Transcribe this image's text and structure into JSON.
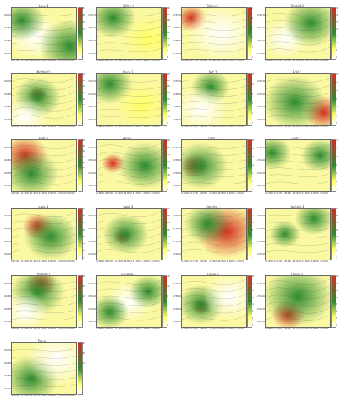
{
  "figure": {
    "panels": [
      {
        "title": "Lucy 1",
        "yticks": [
          "226700",
          "226600",
          "226500",
          "226400"
        ],
        "xticks": [
          "417000",
          "417500",
          "418000",
          "418500",
          "419000",
          "419500",
          "420000"
        ],
        "cbar": [
          "21",
          "18",
          "15",
          "12",
          "9",
          "6",
          "3",
          "0"
        ],
        "palette": "w"
      },
      {
        "title": "Ochre 2",
        "yticks": [
          "226700",
          "226600",
          "226500",
          "226400"
        ],
        "xticks": [
          "416800",
          "417000",
          "417400",
          "417600",
          "417800",
          "418000",
          "418200"
        ],
        "cbar": [
          "36",
          "32",
          "28",
          "24",
          "20",
          "16",
          "12",
          "8",
          "4"
        ],
        "palette": "g"
      },
      {
        "title": "Tailored 1",
        "yticks": [
          "226700",
          "226600",
          "226500",
          "226400"
        ],
        "xticks": [
          "417000",
          "417200",
          "417400",
          "417600",
          "417800",
          "418000",
          "418200"
        ],
        "cbar": [
          "5",
          "4",
          "3",
          "2",
          "1",
          "0"
        ],
        "palette": "w2"
      },
      {
        "title": "Twirled 2",
        "yticks": [
          "226700",
          "226600",
          "226500",
          "226400"
        ],
        "xticks": [
          "416800",
          "417000",
          "417200",
          "417400",
          "417600",
          "417800",
          "418000"
        ],
        "cbar": [
          "21",
          "18",
          "15",
          "12",
          "9",
          "6",
          "3",
          "0"
        ],
        "palette": "g2"
      },
      {
        "title": "Mottled 1",
        "yticks": [
          "226700",
          "226600",
          "226500",
          "226400"
        ],
        "xticks": [
          "417000",
          "417200",
          "417400",
          "417600",
          "417800",
          "418000",
          "418200"
        ],
        "cbar": [
          "32",
          "28",
          "24",
          "20",
          "16",
          "12",
          "8",
          "4",
          "0"
        ],
        "palette": "y"
      },
      {
        "title": "Ness 2",
        "yticks": [
          "226700",
          "226600",
          "226500",
          "226400"
        ],
        "xticks": [
          "416800",
          "417000",
          "417200",
          "417400",
          "417600",
          "417800",
          "418000"
        ],
        "cbar": [
          "45",
          "40",
          "35",
          "30",
          "25",
          "20",
          "15",
          "10",
          "5"
        ],
        "palette": "y2"
      },
      {
        "title": "Ash 1",
        "yticks": [
          "226700",
          "226600",
          "226500",
          "226400"
        ],
        "xticks": [
          "417000",
          "417200",
          "417400",
          "417600",
          "417800",
          "418000",
          "418200"
        ],
        "cbar": [
          "15",
          "12",
          "9",
          "6",
          "3",
          "0"
        ],
        "palette": "y3"
      },
      {
        "title": "Bold 2",
        "yticks": [
          "226700",
          "226600",
          "226500",
          "226400"
        ],
        "xticks": [
          "417000",
          "417200",
          "417400",
          "417600",
          "417800",
          "418000",
          "418200"
        ],
        "cbar": [
          "18",
          "15",
          "12",
          "9",
          "6",
          "3",
          "0"
        ],
        "palette": "g3"
      },
      {
        "title": "Hazl 1",
        "yticks": [
          "226700",
          "226600",
          "226500",
          "226400"
        ],
        "xticks": [
          "417000",
          "417200",
          "417400",
          "417600",
          "417800",
          "418000",
          "418200"
        ],
        "cbar": [
          "20",
          "18",
          "16",
          "14",
          "12",
          "10",
          "8",
          "6",
          "4",
          "2"
        ],
        "palette": "r"
      },
      {
        "title": "Hazel 2",
        "yticks": [
          "226700",
          "226600",
          "226500",
          "226400"
        ],
        "xticks": [
          "416800",
          "417000",
          "417200",
          "417400",
          "417600",
          "417800",
          "418000"
        ],
        "cbar": [
          "36",
          "32",
          "28",
          "24",
          "20",
          "16",
          "12",
          "8"
        ],
        "palette": "g4"
      },
      {
        "title": "Lady 1",
        "yticks": [
          "226700",
          "226600",
          "226500",
          "226400"
        ],
        "xticks": [
          "417000",
          "417200",
          "417400",
          "417600",
          "417800",
          "418000",
          "418200"
        ],
        "cbar": [
          "21",
          "18",
          "15",
          "12",
          "9",
          "6",
          "3"
        ],
        "palette": "y4"
      },
      {
        "title": "Lady 2",
        "yticks": [
          "226700",
          "226600",
          "226500",
          "226400"
        ],
        "xticks": [
          "417000",
          "417200",
          "417400",
          "417600",
          "417800",
          "418000",
          "418200"
        ],
        "cbar": [
          "14",
          "12",
          "10",
          "8",
          "6",
          "4",
          "2"
        ],
        "palette": "g5"
      },
      {
        "title": "Lanc 1",
        "yticks": [
          "226700",
          "226600",
          "226500",
          "226400"
        ],
        "xticks": [
          "417000",
          "417200",
          "417400",
          "417600",
          "417800",
          "418000",
          "418200"
        ],
        "cbar": [
          "54",
          "48",
          "42",
          "36",
          "30",
          "24",
          "18",
          "12"
        ],
        "palette": "g6"
      },
      {
        "title": "Lanc 2",
        "yticks": [
          "226700",
          "226600",
          "226500",
          "226400"
        ],
        "xticks": [
          "416800",
          "417000",
          "417200",
          "417400",
          "417600",
          "417800",
          "418000"
        ],
        "cbar": [
          "40",
          "35",
          "30",
          "25",
          "20",
          "15",
          "10",
          "5"
        ],
        "palette": "y5"
      },
      {
        "title": "Speckle 1",
        "yticks": [
          "226700",
          "226600",
          "226500",
          "226400"
        ],
        "xticks": [
          "417000",
          "417200",
          "417400",
          "417600",
          "417800",
          "418000",
          "418200"
        ],
        "cbar": [
          "14",
          "12",
          "10",
          "8",
          "6",
          "4",
          "2",
          "0"
        ],
        "palette": "r2"
      },
      {
        "title": "Speckle 2",
        "yticks": [
          "226700",
          "226600",
          "226500",
          "226400"
        ],
        "xticks": [
          "417000",
          "417200",
          "417400",
          "417600",
          "417800",
          "418000",
          "418200"
        ],
        "cbar": [
          "32",
          "28",
          "24",
          "20",
          "16",
          "12",
          "8",
          "4"
        ],
        "palette": "g7"
      },
      {
        "title": "Stellate 1",
        "yticks": [
          "226700",
          "226600",
          "226500",
          "226400"
        ],
        "xticks": [
          "417000",
          "417200",
          "417400",
          "417600",
          "417800",
          "418000",
          "418200"
        ],
        "cbar": [
          "18",
          "15",
          "12",
          "9",
          "6",
          "3"
        ],
        "palette": "y6"
      },
      {
        "title": "Sublime 2",
        "yticks": [
          "226700",
          "226600",
          "226500",
          "226400"
        ],
        "xticks": [
          "416800",
          "417000",
          "417200",
          "417400",
          "417600",
          "417800",
          "418000"
        ],
        "cbar": [
          "15",
          "12",
          "9",
          "6",
          "3",
          "0"
        ],
        "palette": "w3"
      },
      {
        "title": "Dense 1",
        "yticks": [
          "226700",
          "226600",
          "226500",
          "226400"
        ],
        "xticks": [
          "417000",
          "417200",
          "417400",
          "417600",
          "417800",
          "418000",
          "418200"
        ],
        "cbar": [
          "28",
          "24",
          "20",
          "16",
          "12",
          "8",
          "4",
          "0"
        ],
        "palette": "w4"
      },
      {
        "title": "Dense 2",
        "yticks": [
          "226700",
          "226600",
          "226500",
          "226400"
        ],
        "xticks": [
          "416800",
          "417000",
          "417200",
          "417400",
          "417600",
          "417800",
          "418000"
        ],
        "cbar": [
          "16",
          "14",
          "12",
          "10",
          "8",
          "6",
          "4",
          "2"
        ],
        "palette": "r3"
      },
      {
        "title": "Tassel 1",
        "yticks": [
          "226700",
          "226600",
          "226500",
          "226400"
        ],
        "xticks": [
          "417000",
          "417200",
          "417400",
          "417600",
          "417800",
          "418000",
          "418200"
        ],
        "cbar": [
          "20",
          "16",
          "12",
          "8",
          "4",
          "0"
        ],
        "palette": "w5"
      }
    ]
  },
  "chart_data": [
    {
      "type": "heatmap",
      "title": "Lucy 1"
    },
    {
      "type": "heatmap",
      "title": "Ochre 2"
    },
    {
      "type": "heatmap",
      "title": "Tailored 1"
    },
    {
      "type": "heatmap",
      "title": "Twirled 2"
    },
    {
      "type": "heatmap",
      "title": "Mottled 1"
    },
    {
      "type": "heatmap",
      "title": "Ness 2"
    },
    {
      "type": "heatmap",
      "title": "Ash 1"
    },
    {
      "type": "heatmap",
      "title": "Bold 2"
    },
    {
      "type": "heatmap",
      "title": "Hazl 1"
    },
    {
      "type": "heatmap",
      "title": "Hazel 2"
    },
    {
      "type": "heatmap",
      "title": "Lady 1"
    },
    {
      "type": "heatmap",
      "title": "Lady 2"
    },
    {
      "type": "heatmap",
      "title": "Lanc 1"
    },
    {
      "type": "heatmap",
      "title": "Lanc 2"
    },
    {
      "type": "heatmap",
      "title": "Speckle 1"
    },
    {
      "type": "heatmap",
      "title": "Speckle 2"
    },
    {
      "type": "heatmap",
      "title": "Stellate 1"
    },
    {
      "type": "heatmap",
      "title": "Sublime 2"
    },
    {
      "type": "heatmap",
      "title": "Dense 1"
    },
    {
      "type": "heatmap",
      "title": "Dense 2"
    },
    {
      "type": "heatmap",
      "title": "Tassel 1"
    }
  ]
}
